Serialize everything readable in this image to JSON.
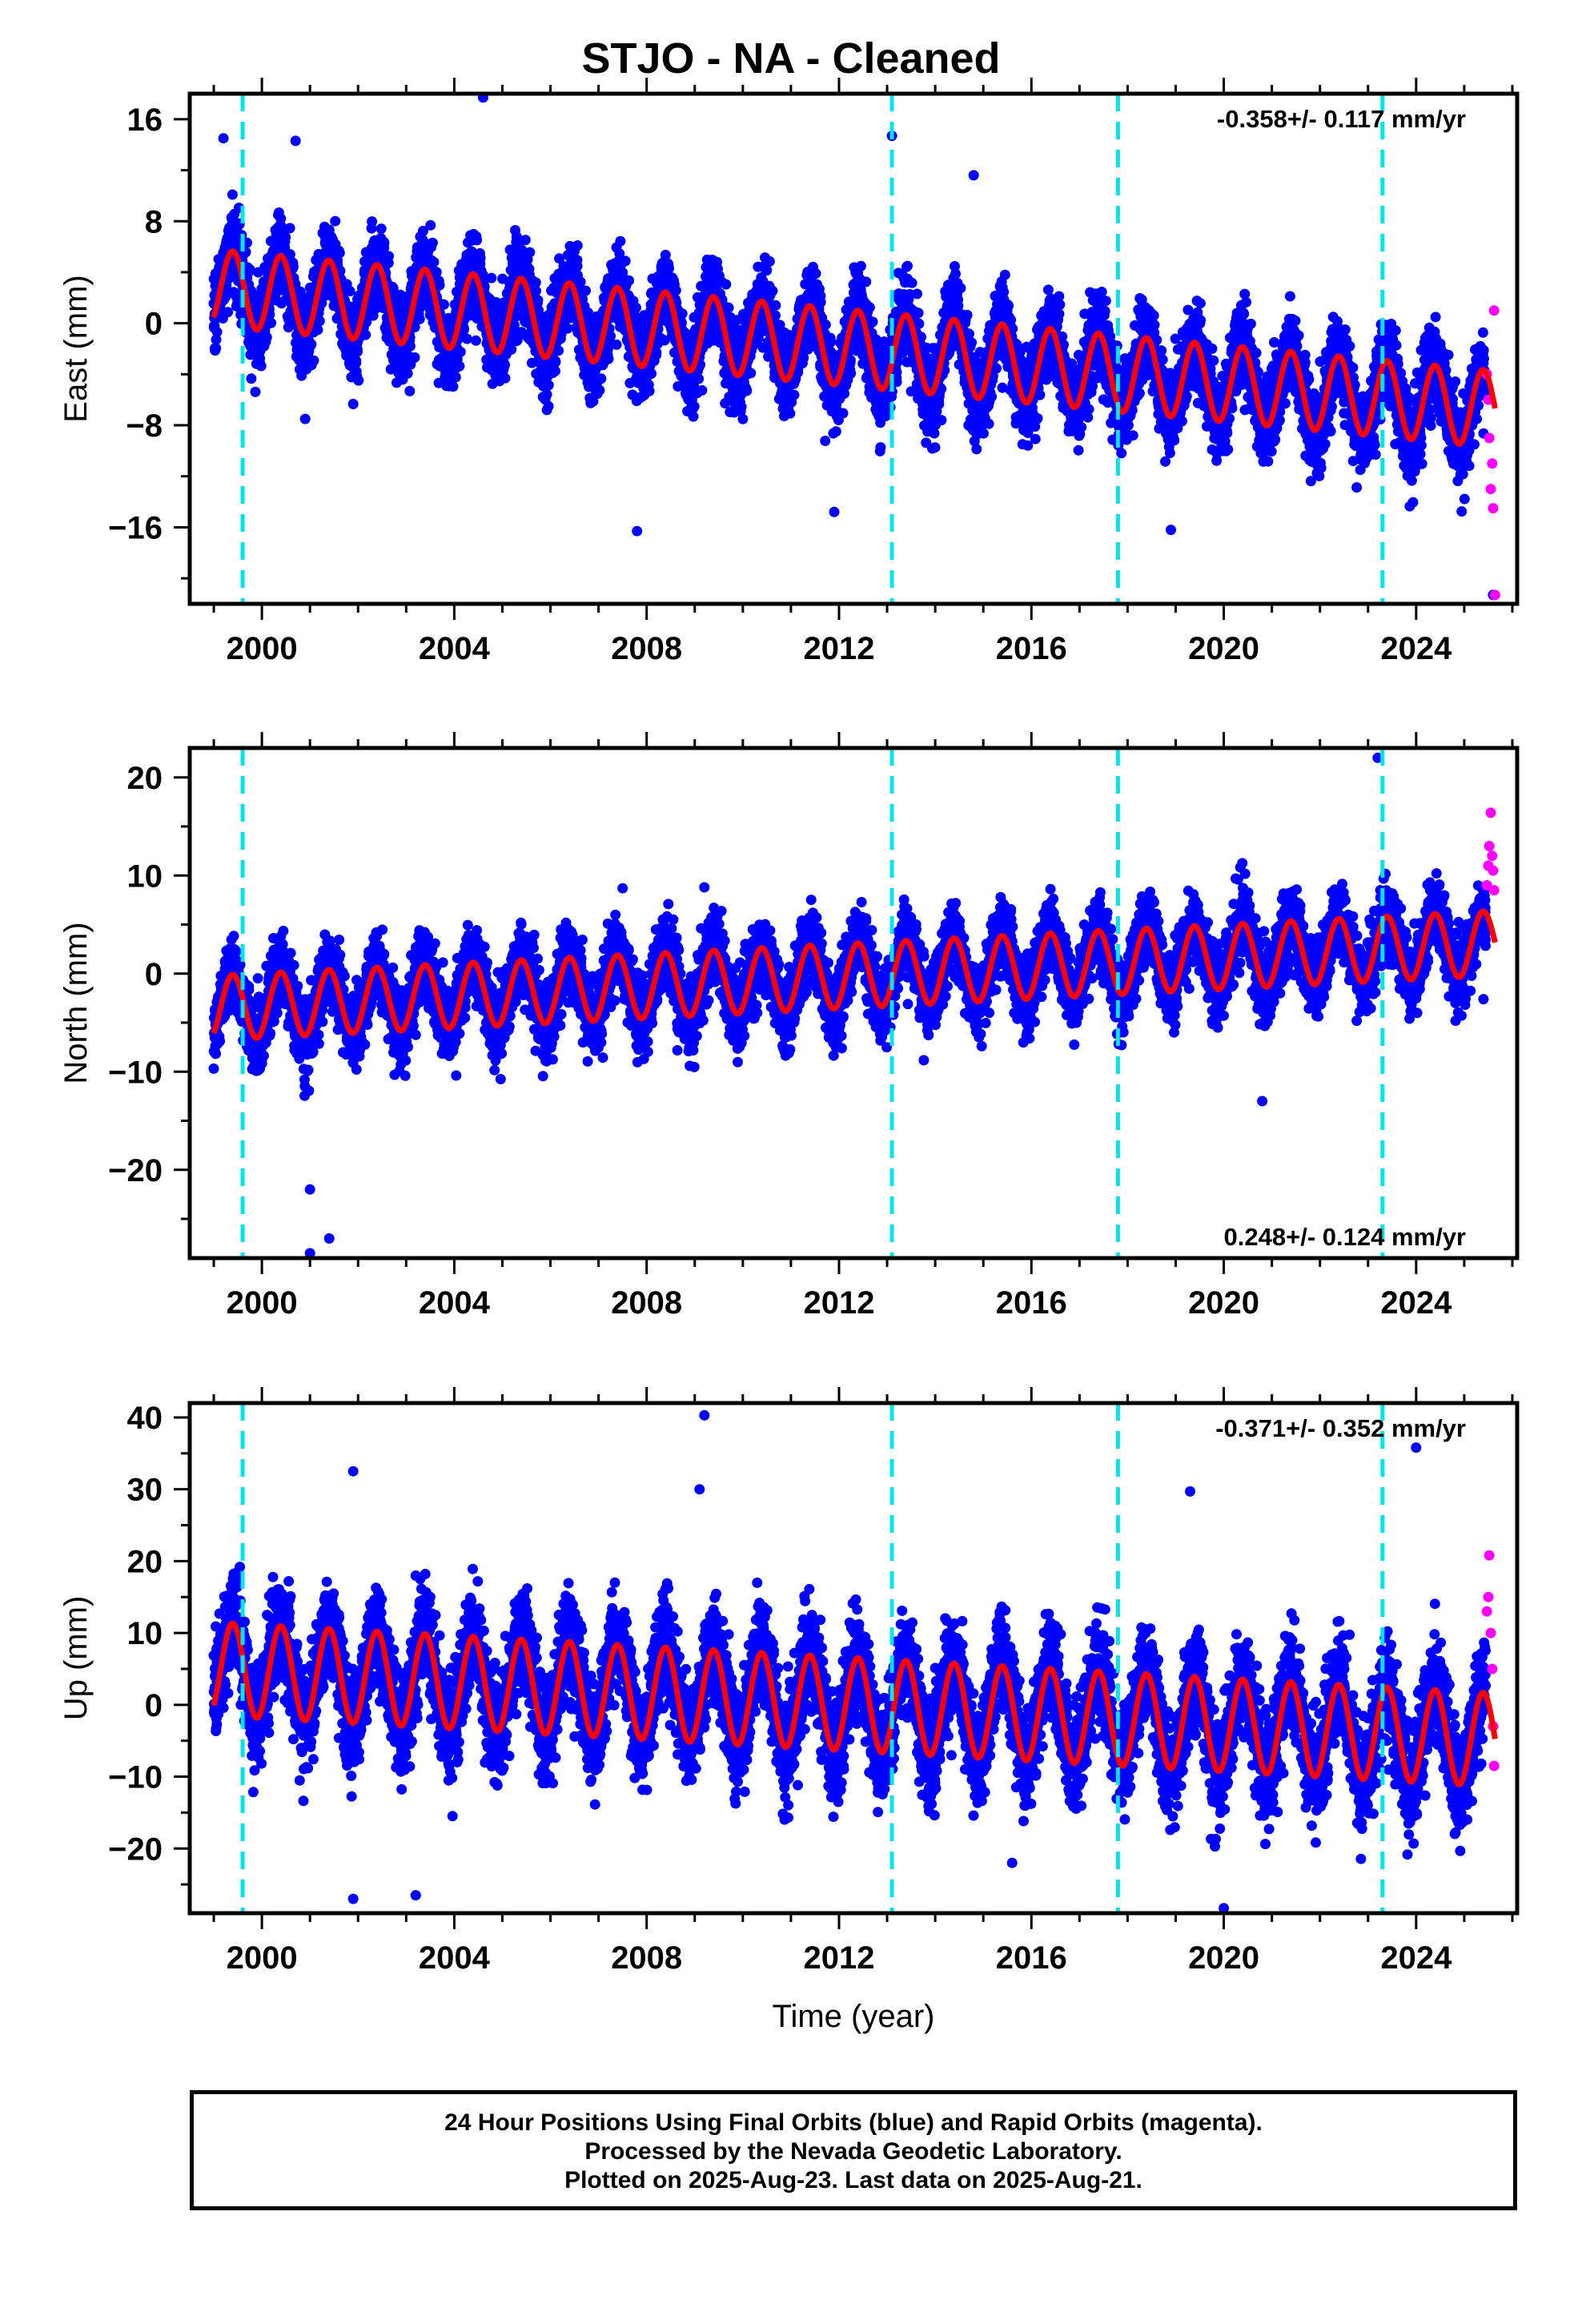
{
  "title": "STJO  - NA - Cleaned",
  "colors": {
    "final_orbits": "#0000ff",
    "rapid_orbits": "#ff00ff",
    "model_fit": "#ff0000",
    "event_lines": "#00e5ee",
    "frame": "#000000"
  },
  "footer": {
    "line1": "24 Hour Positions Using Final Orbits (blue) and Rapid Orbits (magenta).",
    "line2": "Processed by the Nevada Geodetic Laboratory.",
    "line3": "Plotted on 2025-Aug-23. Last data on 2025-Aug-21."
  },
  "chart_data": [
    {
      "type": "scatter",
      "component": "east",
      "ylabel": "East (mm)",
      "xlabel": "",
      "rate_label": "-0.358+/- 0.117 mm/yr",
      "rate_position": "top-right",
      "xlim": [
        1998.5,
        2026.1
      ],
      "ylim": [
        -22,
        18
      ],
      "x_ticks": [
        2000,
        2004,
        2008,
        2012,
        2016,
        2020,
        2024
      ],
      "x_tick_labels": [
        "2000",
        "2004",
        "2008",
        "2012",
        "2016",
        "2020",
        "2024"
      ],
      "y_ticks": [
        -16,
        -8,
        0,
        8,
        16
      ],
      "y_tick_labels": [
        "−16",
        "−8",
        "0",
        "8",
        "16"
      ],
      "event_lines_x": [
        1999.6,
        2013.1,
        2017.8,
        2023.3
      ],
      "data_span": [
        1999.0,
        2025.64
      ],
      "rapid_span": [
        2025.45,
        2025.64
      ],
      "fit_series": {
        "offset_at_start": 2.8,
        "trend_per_year": -0.358,
        "seasonal_amplitude": 3.0,
        "scatter_sd": 1.6,
        "outlier_points": [
          [
            1999.2,
            14.5
          ],
          [
            2000.7,
            14.3
          ],
          [
            2004.6,
            17.7
          ],
          [
            2013.1,
            14.7
          ],
          [
            2014.8,
            11.6
          ],
          [
            2000.9,
            -7.5
          ],
          [
            2007.8,
            -16.3
          ],
          [
            2011.9,
            -14.8
          ],
          [
            2018.9,
            -16.2
          ],
          [
            2025.6,
            -21.3
          ]
        ]
      },
      "rapid_points": [
        [
          2025.47,
          -4
        ],
        [
          2025.5,
          -6
        ],
        [
          2025.52,
          -9
        ],
        [
          2025.55,
          -13
        ],
        [
          2025.58,
          -11
        ],
        [
          2025.6,
          -14.5
        ],
        [
          2025.62,
          1
        ],
        [
          2025.64,
          -21.3
        ]
      ]
    },
    {
      "type": "scatter",
      "component": "north",
      "ylabel": "North (mm)",
      "xlabel": "",
      "rate_label": "0.248+/- 0.124 mm/yr",
      "rate_position": "bottom-right",
      "xlim": [
        1998.5,
        2026.1
      ],
      "ylim": [
        -29,
        23
      ],
      "x_ticks": [
        2000,
        2004,
        2008,
        2012,
        2016,
        2020,
        2024
      ],
      "x_tick_labels": [
        "2000",
        "2004",
        "2008",
        "2012",
        "2016",
        "2020",
        "2024"
      ],
      "y_ticks": [
        -20,
        -10,
        0,
        10,
        20
      ],
      "y_tick_labels": [
        "−20",
        "−10",
        "0",
        "10",
        "20"
      ],
      "event_lines_x": [
        1999.6,
        2013.1,
        2017.8,
        2023.3
      ],
      "data_span": [
        1999.0,
        2025.64
      ],
      "rapid_span": [
        2025.45,
        2025.64
      ],
      "fit_series": {
        "offset_at_start": -3.5,
        "trend_per_year": 0.248,
        "seasonal_amplitude": 3.3,
        "scatter_sd": 1.8,
        "outlier_points": [
          [
            2001.0,
            -22.0
          ],
          [
            2001.0,
            -28.5
          ],
          [
            2001.4,
            -27.0
          ],
          [
            2023.2,
            22.0
          ],
          [
            2007.5,
            8.7
          ],
          [
            2009.2,
            8.8
          ],
          [
            2020.8,
            -13.0
          ],
          [
            2025.4,
            -2.6
          ]
        ]
      },
      "rapid_points": [
        [
          2025.47,
          9
        ],
        [
          2025.5,
          11
        ],
        [
          2025.52,
          13
        ],
        [
          2025.55,
          16.4
        ],
        [
          2025.58,
          12
        ],
        [
          2025.6,
          10.5
        ],
        [
          2025.62,
          8.5
        ]
      ]
    },
    {
      "type": "scatter",
      "component": "up",
      "ylabel": "Up (mm)",
      "xlabel": "Time (year)",
      "rate_label": "-0.371+/- 0.352 mm/yr",
      "rate_position": "top-right",
      "xlim": [
        1998.5,
        2026.1
      ],
      "ylim": [
        -29,
        42
      ],
      "x_ticks": [
        2000,
        2004,
        2008,
        2012,
        2016,
        2020,
        2024
      ],
      "x_tick_labels": [
        "2000",
        "2004",
        "2008",
        "2012",
        "2016",
        "2020",
        "2024"
      ],
      "y_ticks": [
        -20,
        -10,
        0,
        10,
        20,
        30,
        40
      ],
      "y_tick_labels": [
        "−20",
        "−10",
        "0",
        "10",
        "20",
        "30",
        "40"
      ],
      "event_lines_x": [
        1999.6,
        2013.1,
        2017.8,
        2023.3
      ],
      "data_span": [
        1999.0,
        2025.64
      ],
      "rapid_span": [
        2025.45,
        2025.64
      ],
      "fit_series": {
        "offset_at_start": 5.0,
        "trend_per_year": -0.371,
        "seasonal_amplitude": 6.5,
        "scatter_sd": 3.5,
        "outlier_points": [
          [
            2009.2,
            40.3
          ],
          [
            2001.9,
            32.5
          ],
          [
            2009.1,
            30.0
          ],
          [
            2019.3,
            29.7
          ],
          [
            2024.0,
            35.8
          ],
          [
            2001.9,
            -27.0
          ],
          [
            2003.2,
            -26.5
          ],
          [
            2020.0,
            -28.3
          ],
          [
            2015.6,
            -22.0
          ]
        ]
      },
      "rapid_points": [
        [
          2025.47,
          13
        ],
        [
          2025.5,
          15
        ],
        [
          2025.52,
          20.8
        ],
        [
          2025.55,
          10
        ],
        [
          2025.58,
          5
        ],
        [
          2025.6,
          -3
        ],
        [
          2025.62,
          -8.5
        ]
      ]
    }
  ]
}
